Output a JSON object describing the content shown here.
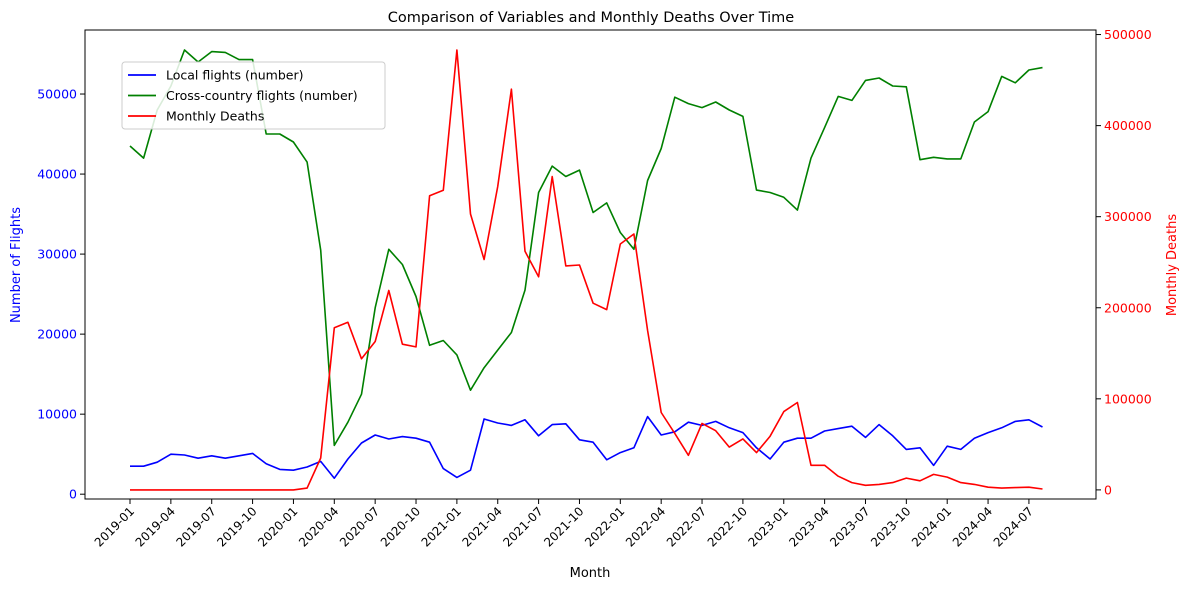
{
  "chart_data": {
    "type": "line",
    "title": "Comparison of Variables and Monthly Deaths Over Time",
    "xlabel": "Month",
    "ylabel_left": "Number of Flights",
    "ylabel_right": "Monthly Deaths",
    "ylim_left": [
      -600,
      58000
    ],
    "ylim_right": [
      -10000,
      505000
    ],
    "yticks_left": [
      0,
      10000,
      20000,
      30000,
      40000,
      50000
    ],
    "yticks_right": [
      0,
      100000,
      200000,
      300000,
      400000,
      500000
    ],
    "xtick_labels": [
      "2019-01",
      "2019-04",
      "2019-07",
      "2019-10",
      "2020-01",
      "2020-04",
      "2020-07",
      "2020-10",
      "2021-01",
      "2021-04",
      "2021-07",
      "2021-10",
      "2022-01",
      "2022-04",
      "2022-07",
      "2022-10",
      "2023-01",
      "2023-04",
      "2023-07",
      "2023-10",
      "2024-01",
      "2024-04",
      "2024-07"
    ],
    "legend_position": "upper-left",
    "grid": false,
    "colors": {
      "left_axis": "#0000ff",
      "right_axis": "#ff0000"
    },
    "series": [
      {
        "name": "Local flights (number)",
        "axis": "left",
        "color": "#0000ff",
        "values": [
          3500,
          3500,
          4000,
          5000,
          4900,
          4500,
          4800,
          4500,
          4800,
          5100,
          3800,
          3100,
          3000,
          3400,
          4100,
          2000,
          4400,
          6400,
          7400,
          6900,
          7200,
          7000,
          6500,
          3200,
          2100,
          3000,
          9400,
          8900,
          8600,
          9300,
          7300,
          8700,
          8800,
          6800,
          6500,
          4300,
          5200,
          5800,
          9700,
          7400,
          7800,
          9000,
          8600,
          9100,
          8300,
          7700,
          5800,
          4400,
          6500,
          7000,
          7000,
          7900,
          8200,
          8500,
          7100,
          8700,
          7300,
          5600,
          5800,
          3600,
          6000,
          5600,
          7000,
          7700,
          8300,
          9100,
          9300,
          8400
        ]
      },
      {
        "name": "Cross-country flights (number)",
        "axis": "left",
        "color": "#008000",
        "values": [
          43500,
          42000,
          48000,
          51000,
          55500,
          54000,
          55300,
          55200,
          54300,
          54300,
          45000,
          45000,
          44000,
          41500,
          30500,
          6100,
          9000,
          12500,
          23300,
          30600,
          28700,
          24700,
          18600,
          19200,
          17400,
          13000,
          15800,
          18000,
          20200,
          25500,
          37700,
          41000,
          39700,
          40500,
          35200,
          36400,
          32700,
          30600,
          39200,
          43200,
          49600,
          48800,
          48300,
          49000,
          48000,
          47200,
          38000,
          37700,
          37100,
          35500,
          42000,
          45800,
          49700,
          49200,
          51700,
          52000,
          51000,
          50900,
          41800,
          42100,
          41900,
          41900,
          46500,
          47800,
          52200,
          51400,
          53000,
          53300
        ]
      },
      {
        "name": "Monthly Deaths",
        "axis": "right",
        "color": "#ff0000",
        "values": [
          0,
          0,
          0,
          0,
          0,
          0,
          0,
          0,
          0,
          0,
          0,
          0,
          0,
          2000,
          35000,
          178000,
          184000,
          144000,
          163000,
          219000,
          160000,
          157000,
          323000,
          329000,
          483000,
          303000,
          253000,
          333000,
          440000,
          262000,
          234000,
          344000,
          246000,
          247000,
          205000,
          198000,
          270000,
          281000,
          175000,
          85000,
          62000,
          38000,
          73000,
          65000,
          47000,
          56000,
          41000,
          59000,
          86000,
          96000,
          27000,
          27000,
          15000,
          8000,
          5000,
          6000,
          8000,
          13000,
          10000,
          17000,
          14000,
          8000,
          6000,
          3000,
          2000,
          2500,
          3000,
          1000
        ]
      }
    ]
  }
}
